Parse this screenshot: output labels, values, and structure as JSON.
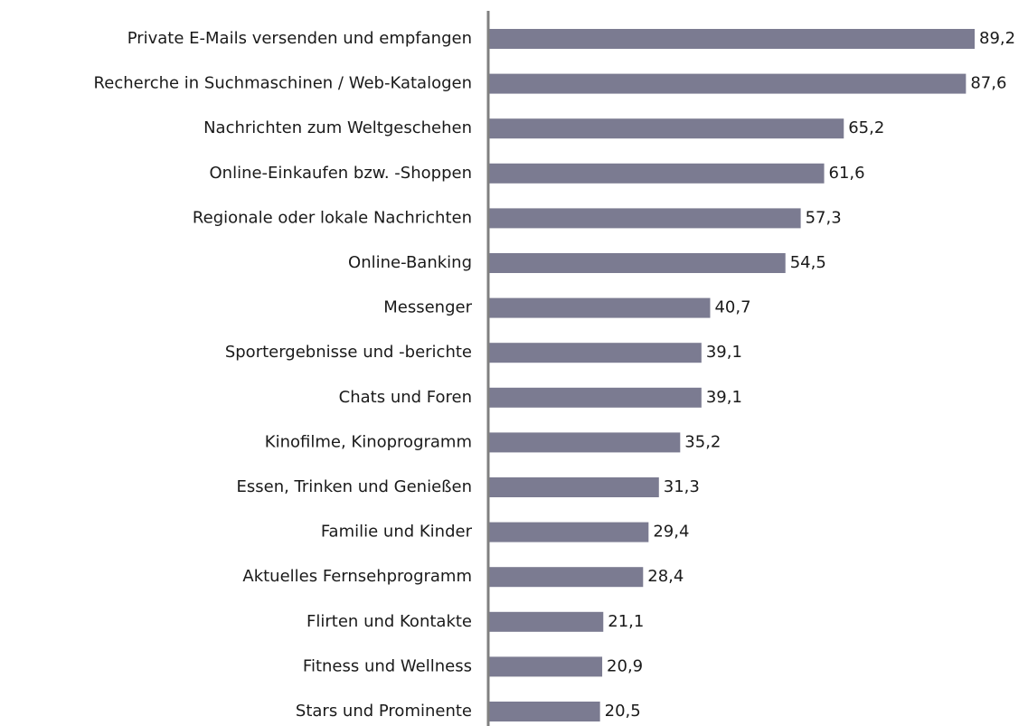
{
  "chart_data": {
    "type": "bar",
    "orientation": "horizontal",
    "categories": [
      "Private E-Mails versenden und empfangen",
      "Recherche in Suchmaschinen / Web-Katalogen",
      "Nachrichten zum Weltgeschehen",
      "Online-Einkaufen bzw. -Shoppen",
      "Regionale oder lokale Nachrichten",
      "Online-Banking",
      "Messenger",
      "Sportergebnisse und -berichte",
      "Chats und Foren",
      "Kinofilme, Kinoprogramm",
      "Essen, Trinken und Genießen",
      "Familie und Kinder",
      "Aktuelles Fernsehprogramm",
      "Flirten und Kontakte",
      "Fitness und Wellness",
      "Stars und Prominente"
    ],
    "values": [
      89.2,
      87.6,
      65.2,
      61.6,
      57.3,
      54.5,
      40.7,
      39.1,
      39.1,
      35.2,
      31.3,
      29.4,
      28.4,
      21.1,
      20.9,
      20.5
    ],
    "value_labels": [
      "89,2",
      "87,6",
      "65,2",
      "61,6",
      "57,3",
      "54,5",
      "40,7",
      "39,1",
      "39,1",
      "35,2",
      "31,3",
      "29,4",
      "28,4",
      "21,1",
      "20,9",
      "20,5"
    ],
    "color": "#7b7b91"
  }
}
